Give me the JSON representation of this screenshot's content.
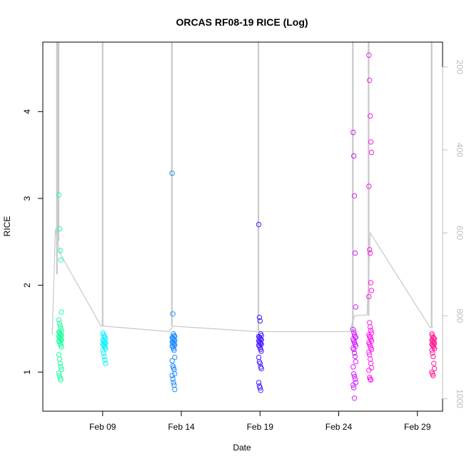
{
  "chart_data": {
    "type": "scatter",
    "title": "ORCAS RF08-19 RICE (Log)",
    "xlabel": "Date",
    "ylabel": "RICE",
    "x_tick_labels": [
      "Feb 09",
      "Feb 14",
      "Feb 19",
      "Feb 24",
      "Feb 29"
    ],
    "x_tick_days": [
      9,
      14,
      19,
      24,
      29
    ],
    "xlim": [
      5.2,
      30.6
    ],
    "y_ticks": [
      1,
      2,
      3,
      4
    ],
    "ylim": [
      0.55,
      4.8
    ],
    "y2_ticks": [
      200,
      400,
      600,
      800,
      1000
    ],
    "y2lim_top_to_bottom": [
      140,
      1030
    ],
    "grid": false,
    "legend": "none",
    "colors": {
      "flight_1": "#1fffa0",
      "flight_2": "#14f0ff",
      "flight_3": "#1e8cff",
      "flight_4": "#4b1eff",
      "flight_5": "#d21eff",
      "flight_6": "#ff1ef0",
      "flight_7": "#ff1e96",
      "pressure_line": "#c8c8c8",
      "axis": "#000000",
      "right_axis": "#bdbdbd"
    },
    "point_series": [
      {
        "day": 6.3,
        "color_key": "flight_1",
        "values": [
          3.04,
          2.65,
          2.4,
          2.29,
          1.69,
          1.6,
          1.56,
          1.53,
          1.5,
          1.47,
          1.46,
          1.45,
          1.44,
          1.43,
          1.42,
          1.41,
          1.4,
          1.39,
          1.38,
          1.37,
          1.36,
          1.35,
          1.33,
          1.31,
          1.29,
          1.2,
          1.15,
          1.1,
          1.06,
          1.03,
          0.99,
          0.96,
          0.93,
          0.91
        ]
      },
      {
        "day": 9.1,
        "color_key": "flight_2",
        "values": [
          1.45,
          1.43,
          1.41,
          1.4,
          1.38,
          1.37,
          1.36,
          1.35,
          1.34,
          1.33,
          1.32,
          1.31,
          1.3,
          1.29,
          1.27,
          1.25,
          1.22,
          1.18,
          1.14,
          1.1
        ]
      },
      {
        "day": 13.5,
        "color_key": "flight_3",
        "values": [
          3.29,
          1.67,
          1.44,
          1.42,
          1.41,
          1.4,
          1.39,
          1.38,
          1.37,
          1.36,
          1.35,
          1.34,
          1.33,
          1.32,
          1.31,
          1.3,
          1.29,
          1.27,
          1.25,
          1.17,
          1.13,
          1.07,
          1.05,
          1.03,
          0.98,
          0.96,
          0.92,
          0.88,
          0.85,
          0.8
        ]
      },
      {
        "day": 19.0,
        "color_key": "flight_4",
        "values": [
          2.7,
          1.63,
          1.59,
          1.44,
          1.42,
          1.41,
          1.4,
          1.39,
          1.38,
          1.37,
          1.36,
          1.35,
          1.34,
          1.33,
          1.32,
          1.31,
          1.3,
          1.28,
          1.26,
          1.24,
          1.17,
          1.12,
          1.1,
          1.06,
          1.04,
          0.88,
          0.84,
          0.82,
          0.79
        ]
      },
      {
        "day": 25.0,
        "color_key": "flight_5",
        "values": [
          3.76,
          3.49,
          3.03,
          2.37,
          1.75,
          1.49,
          1.46,
          1.43,
          1.41,
          1.4,
          1.38,
          1.36,
          1.34,
          1.32,
          1.3,
          1.28,
          1.26,
          1.22,
          1.18,
          1.12,
          1.06,
          0.98,
          0.95,
          0.92,
          0.88,
          0.85,
          0.82,
          0.7
        ]
      },
      {
        "day": 26.0,
        "color_key": "flight_6",
        "values": [
          4.65,
          4.36,
          3.95,
          3.65,
          3.53,
          3.14,
          2.41,
          2.37,
          2.03,
          1.94,
          1.87,
          1.57,
          1.52,
          1.48,
          1.45,
          1.43,
          1.41,
          1.4,
          1.38,
          1.36,
          1.34,
          1.32,
          1.3,
          1.28,
          1.26,
          1.23,
          1.2,
          1.15,
          1.1,
          1.05,
          1.02,
          0.94,
          0.92,
          0.91
        ]
      },
      {
        "day": 30.0,
        "color_key": "flight_7",
        "values": [
          1.44,
          1.42,
          1.4,
          1.39,
          1.38,
          1.37,
          1.36,
          1.35,
          1.34,
          1.33,
          1.32,
          1.31,
          1.3,
          1.29,
          1.27,
          1.25,
          1.22,
          1.18,
          1.1,
          1.04,
          1.0,
          0.98,
          0.96
        ]
      }
    ],
    "pressure_trace": {
      "axis": "right",
      "connect_points": [
        {
          "day": 5.8,
          "value": 845
        },
        {
          "day": 6.0,
          "value": 590
        },
        {
          "day": 6.3,
          "value": 650
        },
        {
          "day": 8.9,
          "value": 825
        },
        {
          "day": 9.1,
          "value": 825
        },
        {
          "day": 13.2,
          "value": 838
        },
        {
          "day": 13.5,
          "value": 825
        },
        {
          "day": 18.8,
          "value": 838
        },
        {
          "day": 19.0,
          "value": 838
        },
        {
          "day": 24.7,
          "value": 838
        },
        {
          "day": 25.0,
          "value": 800
        },
        {
          "day": 25.8,
          "value": 798
        },
        {
          "day": 26.0,
          "value": 600
        },
        {
          "day": 29.8,
          "value": 828
        },
        {
          "day": 30.0,
          "value": 828
        }
      ],
      "profiles": [
        {
          "day": 6.1,
          "min": 140,
          "max": 700
        },
        {
          "day": 6.2,
          "min": 140,
          "max": 620
        },
        {
          "day": 9.0,
          "min": 140,
          "max": 825
        },
        {
          "day": 13.4,
          "min": 140,
          "max": 825
        },
        {
          "day": 18.9,
          "min": 140,
          "max": 838
        },
        {
          "day": 24.9,
          "min": 140,
          "max": 838
        },
        {
          "day": 25.9,
          "min": 140,
          "max": 800
        },
        {
          "day": 29.9,
          "min": 140,
          "max": 828
        }
      ]
    }
  }
}
